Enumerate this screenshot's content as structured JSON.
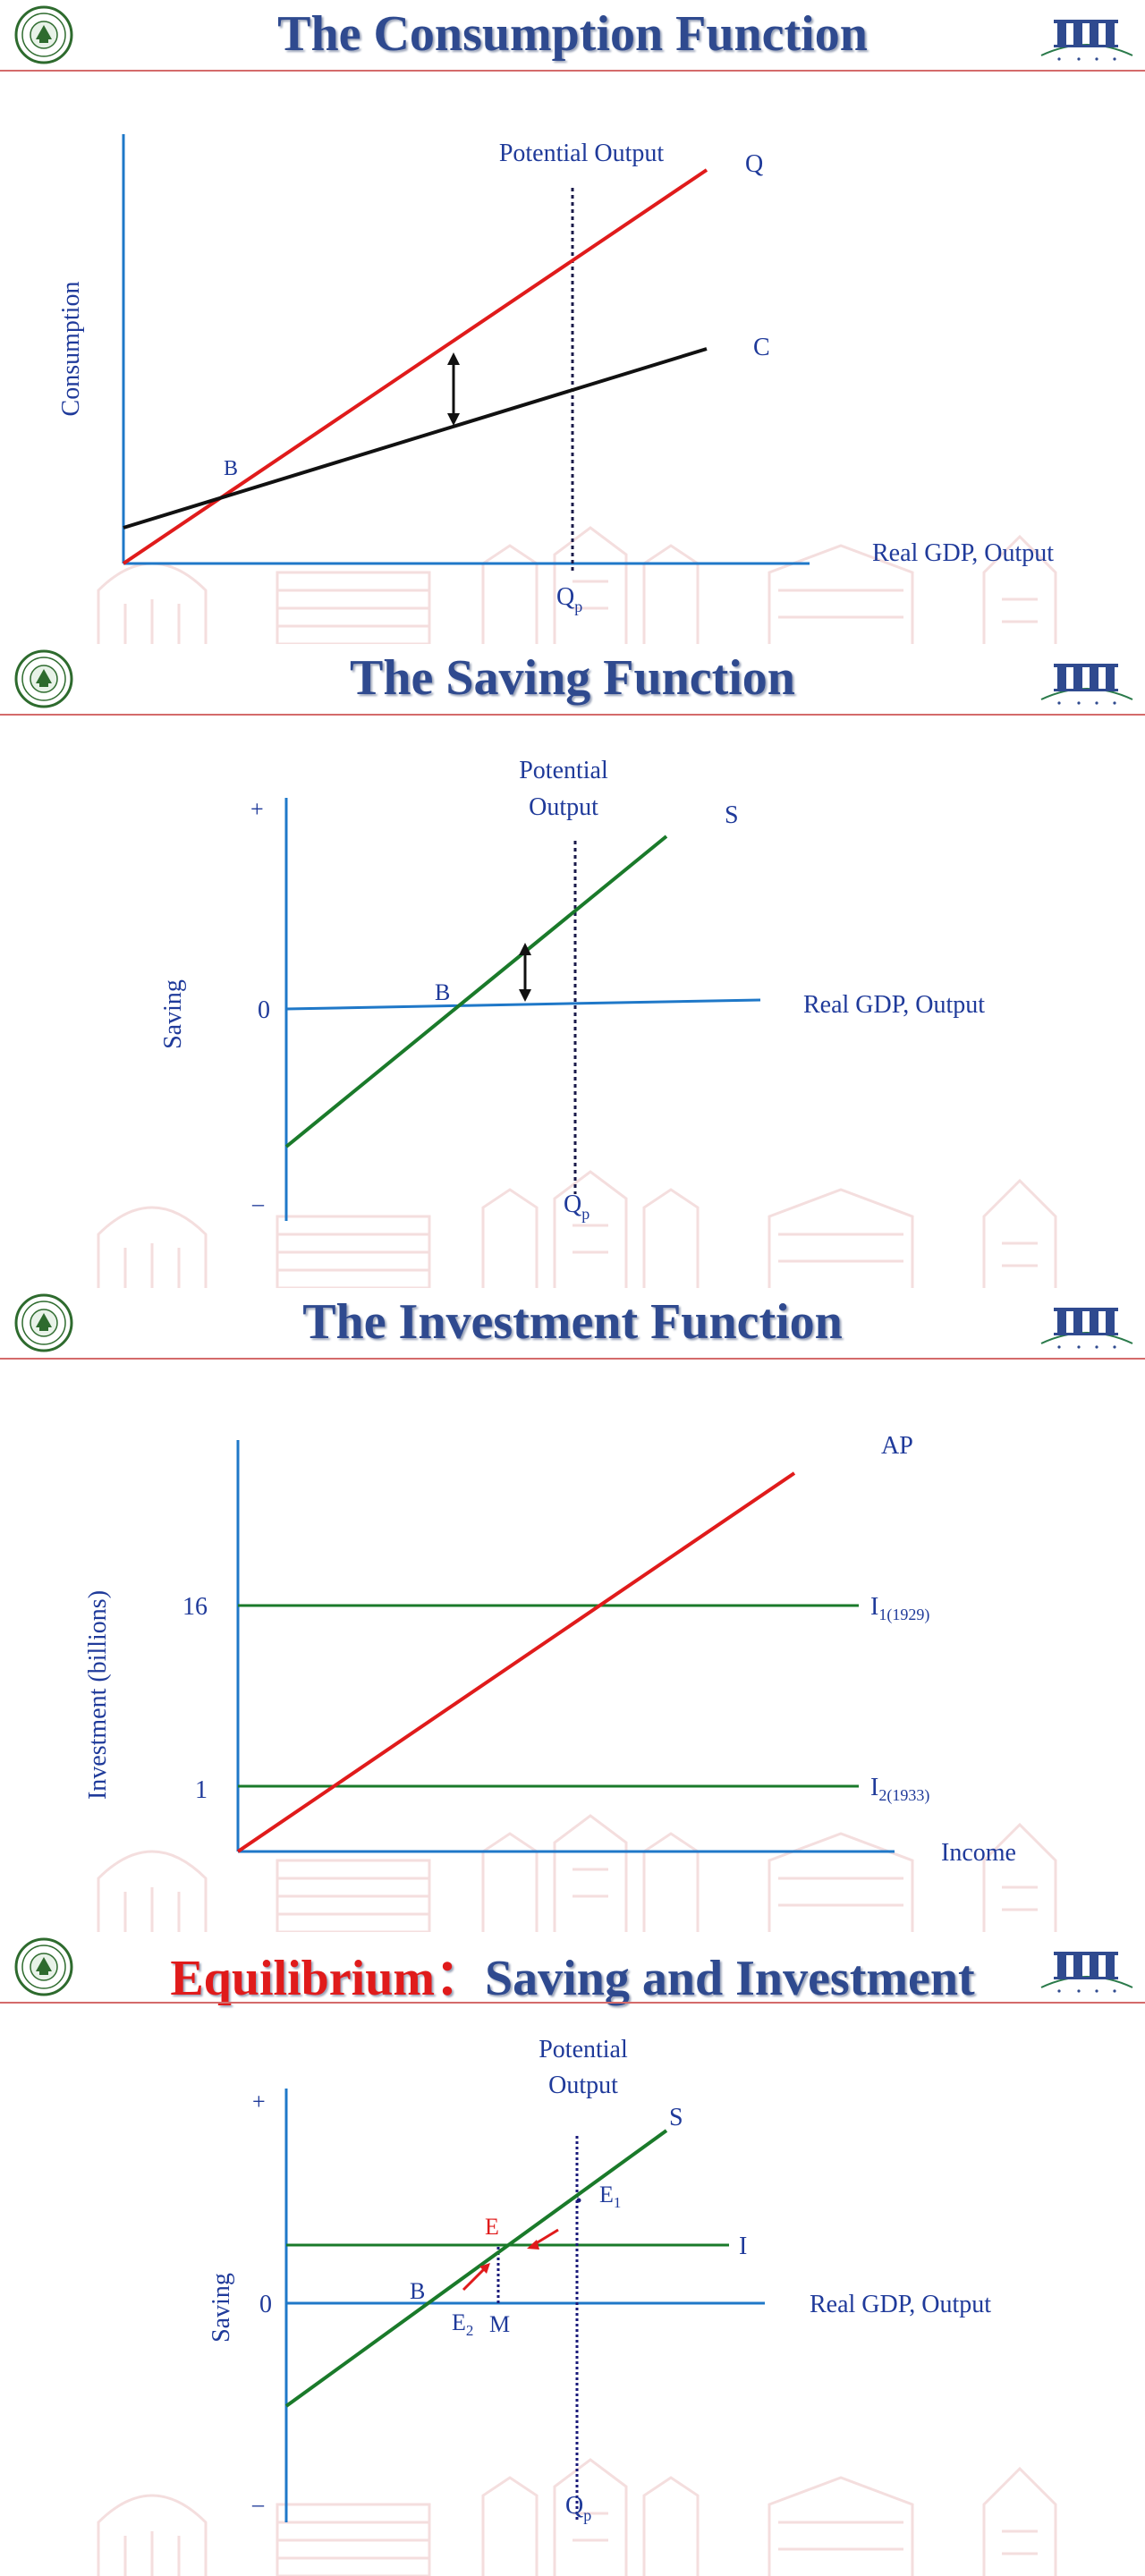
{
  "colors": {
    "title": "#2f4a8f",
    "title_accent": "#e01b1b",
    "axis": "#1f78c8",
    "line_red": "#e01b1b",
    "line_black": "#111111",
    "line_green": "#1a7a2a",
    "label_blue": "#1f3a9a",
    "dotted": "#1a1a4a",
    "rule": "#d46a6a",
    "watermark": "#e8b8b8"
  },
  "icons": [
    "university-seal-icon",
    "sbi-logo-icon",
    "campus-skyline-watermark",
    "double-arrow-icon"
  ],
  "slides": [
    {
      "title": "The Consumption Function",
      "y_label": "Consumption",
      "x_label": "Real GDP, Output",
      "potential_label": "Potential Output",
      "qp_label": "Q",
      "qp_sub": "p",
      "q_line_label": "Q",
      "c_line_label": "C",
      "point_b": "B"
    },
    {
      "title": "The Saving Function",
      "y_label": "Saving",
      "x_label": "Real GDP, Output",
      "potential_label_line1": "Potential",
      "potential_label_line2": "Output",
      "plus_label": "+",
      "zero_label": "0",
      "minus_label": "–",
      "s_line_label": "S",
      "point_b": "B",
      "qp_label": "Q",
      "qp_sub": "p"
    },
    {
      "title": "The Investment Function",
      "y_label": "Investment  (billions)",
      "x_label": "Income",
      "ap_label": "AP",
      "tick_16": "16",
      "tick_1": "1",
      "i1_label": "I",
      "i1_sub": "1(1929)",
      "i2_label": "I",
      "i2_sub": "2(1933)"
    },
    {
      "title_part1": "Equilibrium：",
      "title_part2": "Saving and Investment",
      "y_label": "Saving",
      "x_label": "Real GDP, Output",
      "potential_label_line1": "Potential",
      "potential_label_line2": "Output",
      "plus_label": "+",
      "zero_label": "0",
      "minus_label": "–",
      "s_line_label": "S",
      "i_line_label": "I",
      "point_b": "B",
      "point_e": "E",
      "point_e1": "E",
      "point_e1_sub": "1",
      "point_e2": "E",
      "point_e2_sub": "2",
      "point_m": "M",
      "qp_label": "Q",
      "qp_sub": "p"
    }
  ]
}
